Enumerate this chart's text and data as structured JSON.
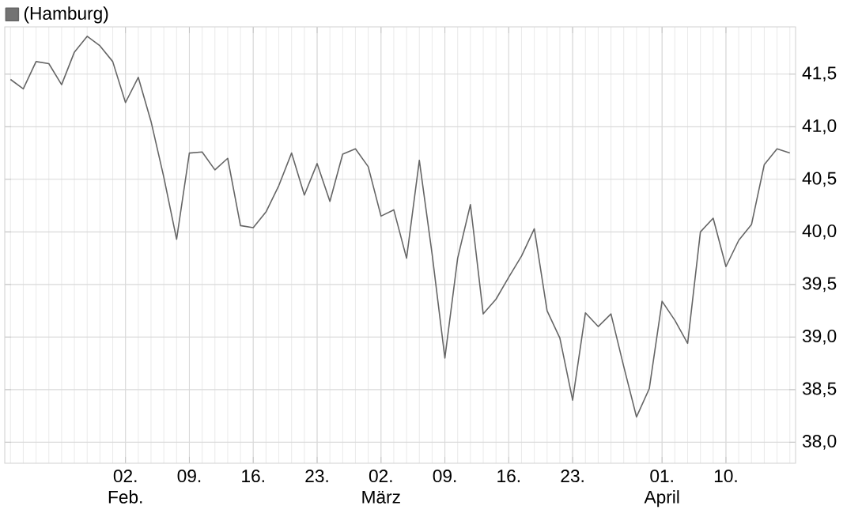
{
  "chart_data": {
    "type": "line",
    "categories": [
      null,
      null,
      null,
      null,
      null,
      null,
      null,
      null,
      null,
      "02. Feb.",
      null,
      null,
      null,
      null,
      "09.",
      null,
      null,
      null,
      null,
      "16.",
      null,
      null,
      null,
      null,
      "23.",
      null,
      null,
      null,
      null,
      "02. März",
      null,
      null,
      null,
      null,
      "09.",
      null,
      null,
      null,
      null,
      "16.",
      null,
      null,
      null,
      null,
      "23.",
      null,
      null,
      null,
      null,
      null,
      null,
      "01. April",
      null,
      null,
      null,
      null,
      "10.",
      null,
      null,
      null,
      null,
      null
    ],
    "series": [
      {
        "name": "(Hamburg)",
        "color": "#666666",
        "values": [
          41.45,
          41.36,
          41.62,
          41.6,
          41.4,
          41.71,
          41.86,
          41.77,
          41.62,
          41.23,
          41.47,
          41.05,
          40.52,
          39.93,
          40.75,
          40.76,
          40.59,
          40.7,
          40.06,
          40.04,
          40.19,
          40.44,
          40.75,
          40.35,
          40.65,
          40.29,
          40.74,
          40.79,
          40.62,
          40.15,
          40.21,
          39.75,
          40.68,
          39.79,
          38.8,
          39.75,
          40.26,
          39.22,
          39.36,
          39.57,
          39.77,
          40.03,
          39.25,
          38.99,
          38.4,
          39.23,
          39.1,
          39.22,
          38.72,
          38.24,
          38.51,
          39.34,
          39.16,
          38.94,
          40.0,
          40.13,
          39.67,
          39.92,
          40.07,
          40.64,
          40.79,
          40.75
        ]
      }
    ],
    "ylim": [
      37.8,
      41.95
    ],
    "yticks": [
      {
        "value": 38.0,
        "label": "38,0"
      },
      {
        "value": 38.5,
        "label": "38,5"
      },
      {
        "value": 39.0,
        "label": "39,0"
      },
      {
        "value": 39.5,
        "label": "39,5"
      },
      {
        "value": 40.0,
        "label": "40,0"
      },
      {
        "value": 40.5,
        "label": "40,5"
      },
      {
        "value": 41.0,
        "label": "41,0"
      },
      {
        "value": 41.5,
        "label": "41,5"
      }
    ],
    "grid": true,
    "legend": "top left",
    "marker": "none",
    "line_style": "solid"
  }
}
